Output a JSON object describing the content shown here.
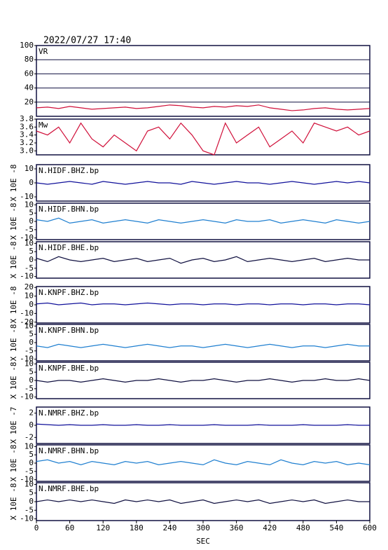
{
  "timestamp": "2022/07/27  17:40",
  "chart_data": [
    {
      "type": "line",
      "title": "VR",
      "x": [
        0,
        20,
        40,
        60,
        80,
        100,
        120,
        140,
        160,
        180,
        200,
        220,
        240,
        260,
        280,
        300,
        320,
        340,
        360,
        380,
        400,
        420,
        440,
        460,
        480,
        500,
        520,
        540,
        560,
        580,
        600
      ],
      "xlim": [
        0,
        600
      ],
      "ylim": [
        0,
        100
      ],
      "yticks": [
        20,
        40,
        60,
        80,
        100
      ],
      "grid": true,
      "series": [
        {
          "color": "#d0103a",
          "values": [
            12,
            13,
            11,
            14,
            12,
            10,
            11,
            12,
            13,
            11,
            12,
            14,
            16,
            15,
            13,
            12,
            14,
            13,
            15,
            14,
            16,
            12,
            10,
            8,
            9,
            11,
            12,
            10,
            9,
            10,
            11
          ]
        }
      ]
    },
    {
      "type": "line",
      "title": "Mw",
      "x": [
        0,
        20,
        40,
        60,
        80,
        100,
        120,
        140,
        160,
        180,
        200,
        220,
        240,
        260,
        280,
        300,
        320,
        340,
        360,
        380,
        400,
        420,
        440,
        460,
        480,
        500,
        520,
        540,
        560,
        580,
        600
      ],
      "xlim": [
        0,
        600
      ],
      "ylim": [
        2.9,
        3.8
      ],
      "yticks": [
        {
          "value": 3,
          "label": "3.0"
        },
        3.2,
        3.4,
        3.6,
        3.8
      ],
      "series": [
        {
          "color": "#d0103a",
          "values": [
            3.5,
            3.4,
            3.6,
            3.2,
            3.7,
            3.3,
            3.1,
            3.4,
            3.2,
            3.0,
            3.5,
            3.6,
            3.3,
            3.7,
            3.4,
            3.0,
            2.9,
            3.7,
            3.2,
            3.4,
            3.6,
            3.1,
            3.3,
            3.5,
            3.2,
            3.7,
            3.6,
            3.5,
            3.6,
            3.4,
            3.5
          ]
        }
      ]
    },
    {
      "type": "line",
      "title": "N.HIDF.BHZ.bp",
      "ylabel": "X 10E -8",
      "x": [
        0,
        20,
        40,
        60,
        80,
        100,
        120,
        140,
        160,
        180,
        200,
        220,
        240,
        260,
        280,
        300,
        320,
        340,
        360,
        380,
        400,
        420,
        440,
        460,
        480,
        500,
        520,
        540,
        560,
        580,
        600
      ],
      "xlim": [
        0,
        600
      ],
      "ylim": [
        -13,
        13
      ],
      "yticks": [
        -10,
        0,
        10
      ],
      "series": [
        {
          "color": "#10109a",
          "values": [
            0,
            -1,
            0,
            1,
            0,
            -1,
            1,
            0,
            -1,
            0,
            1,
            0,
            0,
            -1,
            1,
            0,
            -1,
            0,
            1,
            0,
            0,
            -1,
            0,
            1,
            0,
            -1,
            0,
            1,
            0,
            1,
            0
          ]
        }
      ]
    },
    {
      "type": "line",
      "title": "N.HIDF.BHN.bp",
      "ylabel": "X 10E -8",
      "x": [
        0,
        20,
        40,
        60,
        80,
        100,
        120,
        140,
        160,
        180,
        200,
        220,
        240,
        260,
        280,
        300,
        320,
        340,
        360,
        380,
        400,
        420,
        440,
        460,
        480,
        500,
        520,
        540,
        560,
        580,
        600
      ],
      "xlim": [
        0,
        600
      ],
      "ylim": [
        -11,
        11
      ],
      "yticks": [
        -10,
        -5,
        0,
        5,
        10
      ],
      "series": [
        {
          "color": "#1f7fd0",
          "values": [
            1,
            0,
            2,
            -1,
            0,
            1,
            -1,
            0,
            1,
            0,
            -1,
            1,
            0,
            -1,
            0,
            1,
            0,
            -1,
            1,
            0,
            0,
            1,
            -1,
            0,
            1,
            0,
            -1,
            1,
            0,
            -1,
            0
          ]
        }
      ]
    },
    {
      "type": "line",
      "title": "N.HIDF.BHE.bp",
      "ylabel": "X 10E -8",
      "x": [
        0,
        20,
        40,
        60,
        80,
        100,
        120,
        140,
        160,
        180,
        200,
        220,
        240,
        260,
        280,
        300,
        320,
        340,
        360,
        380,
        400,
        420,
        440,
        460,
        480,
        500,
        520,
        540,
        560,
        580,
        600
      ],
      "xlim": [
        0,
        600
      ],
      "ylim": [
        -11,
        11
      ],
      "yticks": [
        -10,
        -5,
        0,
        5,
        10
      ],
      "series": [
        {
          "color": "#101040",
          "values": [
            1,
            -1,
            2,
            0,
            -1,
            0,
            1,
            -1,
            0,
            1,
            -1,
            0,
            1,
            -2,
            0,
            1,
            -1,
            0,
            2,
            -1,
            0,
            1,
            0,
            -1,
            0,
            1,
            -1,
            0,
            1,
            0,
            0
          ]
        }
      ]
    },
    {
      "type": "line",
      "title": "N.KNPF.BHZ.bp",
      "ylabel": "X 10E -8",
      "x": [
        0,
        20,
        40,
        60,
        80,
        100,
        120,
        140,
        160,
        180,
        200,
        220,
        240,
        260,
        280,
        300,
        320,
        340,
        360,
        380,
        400,
        420,
        440,
        460,
        480,
        500,
        520,
        540,
        560,
        580,
        600
      ],
      "xlim": [
        0,
        600
      ],
      "ylim": [
        -21,
        21
      ],
      "yticks": [
        -20,
        -10,
        0,
        10,
        20
      ],
      "series": [
        {
          "color": "#10109a",
          "values": [
            1,
            2,
            0,
            1,
            2,
            0,
            1,
            1,
            0,
            1,
            2,
            1,
            0,
            1,
            1,
            0,
            1,
            1,
            0,
            1,
            1,
            0,
            1,
            1,
            0,
            1,
            1,
            0,
            1,
            1,
            0
          ]
        }
      ]
    },
    {
      "type": "line",
      "title": "N.KNPF.BHN.bp",
      "ylabel": "X 10E -8",
      "x": [
        0,
        20,
        40,
        60,
        80,
        100,
        120,
        140,
        160,
        180,
        200,
        220,
        240,
        260,
        280,
        300,
        320,
        340,
        360,
        380,
        400,
        420,
        440,
        460,
        480,
        500,
        520,
        540,
        560,
        580,
        600
      ],
      "xlim": [
        0,
        600
      ],
      "ylim": [
        -11,
        11
      ],
      "yticks": [
        -10,
        -5,
        0,
        5,
        10
      ],
      "series": [
        {
          "color": "#1f7fd0",
          "values": [
            -2,
            -3,
            -1,
            -2,
            -3,
            -2,
            -1,
            -2,
            -3,
            -2,
            -1,
            -2,
            -3,
            -2,
            -2,
            -3,
            -2,
            -1,
            -2,
            -3,
            -2,
            -1,
            -2,
            -3,
            -2,
            -2,
            -3,
            -2,
            -1,
            -2,
            -2
          ]
        }
      ]
    },
    {
      "type": "line",
      "title": "N.KNPF.BHE.bp",
      "ylabel": "X 10E -8",
      "x": [
        0,
        20,
        40,
        60,
        80,
        100,
        120,
        140,
        160,
        180,
        200,
        220,
        240,
        260,
        280,
        300,
        320,
        340,
        360,
        380,
        400,
        420,
        440,
        460,
        480,
        500,
        520,
        540,
        560,
        580,
        600
      ],
      "xlim": [
        0,
        600
      ],
      "ylim": [
        -11,
        11
      ],
      "yticks": [
        -10,
        -5,
        0,
        5,
        10
      ],
      "series": [
        {
          "color": "#101040",
          "values": [
            0,
            -1,
            0,
            0,
            -1,
            0,
            1,
            0,
            -1,
            0,
            0,
            1,
            0,
            -1,
            0,
            0,
            1,
            0,
            -1,
            0,
            0,
            1,
            0,
            -1,
            0,
            0,
            1,
            0,
            0,
            1,
            0
          ]
        }
      ]
    },
    {
      "type": "line",
      "title": "N.NMRF.BHZ.bp",
      "ylabel": "X 10E -7",
      "x": [
        0,
        20,
        40,
        60,
        80,
        100,
        120,
        140,
        160,
        180,
        200,
        220,
        240,
        260,
        280,
        300,
        320,
        340,
        360,
        380,
        400,
        420,
        440,
        460,
        480,
        500,
        520,
        540,
        560,
        580,
        600
      ],
      "xlim": [
        0,
        600
      ],
      "ylim": [
        -3,
        3
      ],
      "yticks": [
        -2,
        0,
        2
      ],
      "series": [
        {
          "color": "#10109a",
          "values": [
            0.2,
            0.1,
            0,
            0.1,
            0,
            0,
            0.1,
            0,
            0,
            0.1,
            0,
            0,
            0.1,
            0,
            0,
            0,
            0.1,
            0,
            0,
            0,
            0.1,
            0,
            0,
            0,
            0.1,
            0,
            0,
            0,
            0.1,
            0,
            0
          ]
        }
      ]
    },
    {
      "type": "line",
      "title": "N.NMRF.BHN.bp",
      "ylabel": "X 10E -8",
      "x": [
        0,
        20,
        40,
        60,
        80,
        100,
        120,
        140,
        160,
        180,
        200,
        220,
        240,
        260,
        280,
        300,
        320,
        340,
        360,
        380,
        400,
        420,
        440,
        460,
        480,
        500,
        520,
        540,
        560,
        580,
        600
      ],
      "xlim": [
        0,
        600
      ],
      "ylim": [
        -11,
        11
      ],
      "yticks": [
        -10,
        -5,
        0,
        5,
        10
      ],
      "series": [
        {
          "color": "#1f7fd0",
          "values": [
            1,
            2,
            0,
            1,
            -1,
            1,
            0,
            -1,
            1,
            0,
            1,
            -1,
            0,
            1,
            0,
            -1,
            2,
            0,
            -1,
            1,
            0,
            -1,
            2,
            0,
            -1,
            1,
            0,
            1,
            -1,
            0,
            -1
          ]
        }
      ]
    },
    {
      "type": "line",
      "title": "N.NMRF.BHE.bp",
      "ylabel": "X 10E -8",
      "x": [
        0,
        20,
        40,
        60,
        80,
        100,
        120,
        140,
        160,
        180,
        200,
        220,
        240,
        260,
        280,
        300,
        320,
        340,
        360,
        380,
        400,
        420,
        440,
        460,
        480,
        500,
        520,
        540,
        560,
        580,
        600
      ],
      "xlim": [
        0,
        600
      ],
      "ylim": [
        -11,
        11
      ],
      "yticks": [
        -10,
        -5,
        0,
        5,
        10
      ],
      "series": [
        {
          "color": "#101040",
          "values": [
            0,
            1,
            0,
            1,
            0,
            1,
            0,
            -1,
            1,
            0,
            1,
            0,
            1,
            -1,
            0,
            1,
            -1,
            0,
            1,
            0,
            1,
            -1,
            0,
            1,
            0,
            1,
            -1,
            0,
            1,
            0,
            0
          ]
        }
      ],
      "xticks": [
        0,
        60,
        120,
        180,
        240,
        300,
        360,
        420,
        480,
        540,
        600
      ],
      "xlabel": "SEC"
    }
  ]
}
